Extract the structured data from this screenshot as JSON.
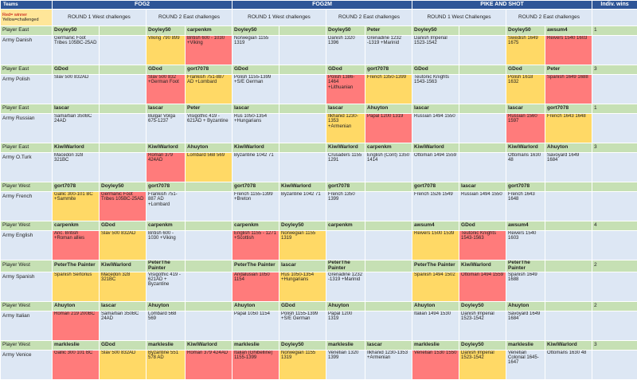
{
  "header": {
    "teams": "Teams",
    "games": [
      "FOG2",
      "FOG2M",
      "PIKE AND SHOT"
    ],
    "indiv_wins": "Indiv. wins",
    "legend_red": "Red= winner",
    "legend_yellow": "Yellow=challenged",
    "subheaders": [
      "ROUND  1 West challenges",
      "ROUND  2 East challenges",
      "ROUND  1 West challenges",
      "ROUND  2 East challenges",
      "ROUND  1 West Challenges",
      "ROUND  2 East challenges"
    ]
  },
  "teams": [
    {
      "player_label": "Player East",
      "army_label": "Army Danish",
      "players": [
        "Doyley50",
        "",
        "Doyley50",
        "carpenkm",
        "Doyley50",
        "",
        "Doyley50",
        "Peter",
        "Doyley50",
        "",
        "Doyley50",
        "awsum4"
      ],
      "armies": [
        "Germanic Foot Tribes 105BC-25AD",
        "",
        "Viking 790 899",
        "British 600 - 1030 +Viking",
        "Norwegian 1155 1319",
        "",
        "Danish 1320  1396",
        "Grenadine 1232 -1319 +Marinid",
        "Danish Imperial 1523-1542",
        "",
        "Swedish 1649 1675",
        "Reivers 1540 1603"
      ],
      "colors": [
        "",
        "",
        "y",
        "r",
        "",
        "",
        "",
        "",
        "",
        "",
        "y",
        "r"
      ],
      "wins": "1"
    },
    {
      "player_label": "Player East",
      "army_label": "Army Polish",
      "players": [
        "GDod",
        "",
        "GDod",
        "gort7078",
        "GDod",
        "",
        "GDod",
        "gort7078",
        "GDod",
        "",
        "GDod",
        "Peter"
      ],
      "armies": [
        "Slav 500 832AD",
        "",
        "Slav 500 832 +German Foot",
        "Frankish 751-887 AD +Lombard",
        "Polish 1155-1399 +S/E German",
        "",
        "Polish 1386-1464 +Lithuanian",
        "French 1350-1399",
        "Teutonic Knights 1543-1563",
        "",
        "Polish 1618 1632",
        "Spanish 1649 1688"
      ],
      "colors": [
        "",
        "",
        "r",
        "y",
        "",
        "",
        "r",
        "y",
        "",
        "",
        "y",
        "r"
      ],
      "wins": "3"
    },
    {
      "player_label": "Player East",
      "army_label": "Army Russian",
      "players": [
        "lascar",
        "",
        "lascar",
        "Peter",
        "lascar",
        "",
        "lascar",
        "Ahuyton",
        "lascar",
        "",
        "lascar",
        "gort7078"
      ],
      "armies": [
        "Samartian 350BC  24AD",
        "",
        "Bulgar Volga 675-1237",
        "Visigothic 419 - 621AD + Byzantine",
        "Rus 1050-1354 +Hungarians",
        "",
        "Ilkhanid 1230-1353 +Armenian",
        "Papal 1200 1319",
        "Russian 1494 1550",
        "",
        "Russian 1560 1597",
        "French 1643 1648"
      ],
      "colors": [
        "",
        "",
        "",
        "",
        "",
        "",
        "y",
        "r",
        "",
        "",
        "r",
        "y"
      ],
      "wins": "1"
    },
    {
      "player_label": "Player East",
      "army_label": "Army O.Turk",
      "players": [
        "KiwiWarlord",
        "",
        "KiwiWarlord",
        "Ahuyton",
        "KiwiWarlord",
        "",
        "KiwiWarlord",
        "carpenkm",
        "KiwiWarlord",
        "",
        "KiwiWarlord",
        "Ahuyton"
      ],
      "armies": [
        "Macedon 328 321BC",
        "",
        "Roman 379 424AD",
        "Lombard 568 569",
        "Byzantine 1042 71",
        "",
        "Crusaders 1155 1291",
        "English (Cont) 1350 1414",
        "Ottoman 1494 1559",
        "",
        "Ottomans 1630 48",
        "Savoyard 1649 1684"
      ],
      "colors": [
        "",
        "",
        "r",
        "y",
        "",
        "",
        "",
        "",
        "",
        "",
        "",
        ""
      ],
      "wins": "3"
    },
    {
      "player_label": "Player West",
      "army_label": "Army French",
      "players": [
        "gort7078",
        "Doyley50",
        "gort7078",
        "",
        "gort7078",
        "KiwiWarlord",
        "gort7078",
        "",
        "gort7078",
        "lascar",
        "gort7078",
        ""
      ],
      "armies": [
        "Gallic 300-101 BC +Sammite",
        "Germanic Foot Tribes 105BC-25AD",
        "Frankish 751-887 AD +Lombard",
        "",
        "French 1155-1399 +Breton",
        "Byzantine 1042 71",
        "French 1350 1399",
        "",
        "French 1526 1549",
        "Russian 1494 1550",
        "French 1643 1648",
        ""
      ],
      "colors": [
        "y",
        "r",
        "",
        "",
        "",
        "",
        "",
        "",
        "",
        "",
        "",
        ""
      ],
      "wins": ""
    },
    {
      "player_label": "Player West",
      "army_label": "Army English",
      "players": [
        "carpenkm",
        "GDod",
        "carpenkm",
        "",
        "carpenkm",
        "Doyley50",
        "carpenkm",
        "",
        "awsum4",
        "GDod",
        "awsum4",
        ""
      ],
      "armies": [
        "Anc. British +Roman allies",
        "Slav 500 832AD",
        "British 600 - 1030 +Viking",
        "",
        "English 1155 - 1271 +Scottish",
        "Norwegian 1155 1319",
        "",
        "",
        "Reivers 1500 1539",
        "Teutonic Knights 1543-1563",
        "Reivers 1540 1603",
        ""
      ],
      "colors": [
        "r",
        "y",
        "",
        "",
        "r",
        "y",
        "",
        "",
        "y",
        "r",
        "",
        ""
      ],
      "wins": "4"
    },
    {
      "player_label": "Player West",
      "army_label": "Army Spanish",
      "players": [
        "PeterThe Painter",
        "KiwiWarlord",
        "PeterThe Painter",
        "",
        "PeterThe Painter",
        "lascar",
        "PeterThe Painter",
        "",
        "PeterThe Painter",
        "KiwiWarlord",
        "PeterThe Painter",
        ""
      ],
      "armies": [
        "Spanish Sertorius",
        "Macedon 328 321BC",
        "Visigothic 419 - 621AD + Byzantine",
        "",
        "Andalusian 1050  1154",
        "Rus 1050-1354 +Hungarians",
        "Grenadine 1232 -1319 +Marinid",
        "",
        "Spanish 1494  1502",
        "Ottoman 1494 1559",
        "Spanish 1649 1688",
        ""
      ],
      "colors": [
        "y",
        "y",
        "",
        "",
        "r",
        "y",
        "",
        "",
        "y",
        "r",
        "",
        ""
      ],
      "wins": "2"
    },
    {
      "player_label": "Player West",
      "army_label": "Army Italian",
      "players": [
        "Ahuyton",
        "lascar",
        "Ahuyton",
        "",
        "Ahuyton",
        "GDod",
        "Ahuyton",
        "",
        "Ahuyton",
        "Doyley50",
        "Ahuyton",
        ""
      ],
      "armies": [
        "Roman 219 200BC",
        "Samartian 350BC  24AD",
        "Lombard 568 569",
        "",
        "Papal 1050 1154",
        "Polish 1155-1399 +S/E German",
        "Papal 1200 1319",
        "",
        "Italian 1494 1530",
        "Danish Imperial 1523-1542",
        "Savoyard 1649 1684",
        ""
      ],
      "colors": [
        "r",
        "",
        "",
        "",
        "",
        "",
        "",
        "",
        "",
        "",
        "",
        ""
      ],
      "wins": "2"
    },
    {
      "player_label": "Player West",
      "army_label": "Army Venice",
      "players": [
        "markleslie",
        "GDod",
        "markleslie",
        "KiwiWarlord",
        "markleslie",
        "Doyley50",
        "markleslie",
        "lascar",
        "markleslie",
        "Doyley50",
        "markleslie",
        "KiwiWarlord"
      ],
      "armies": [
        "Gallic 300 101 BC",
        "Slav 500 832AD",
        "Byzantine 551 578 AD",
        "Roman 379 424AD",
        "Italian (Ghibelline) 1155-1399",
        "Norwegian 1155 1319",
        "Venetian 1320 1399",
        "Ilkhanid 1230-1353 +Armenian",
        "Venetian 1530 1550",
        "Danish Imperial 1523-1542",
        "Venetian Colonial 1645-1647",
        "Ottomans 1630 48"
      ],
      "colors": [
        "r",
        "y",
        "y",
        "r",
        "r",
        "y",
        "",
        "",
        "r",
        "y",
        "",
        ""
      ],
      "wins": "3"
    }
  ]
}
